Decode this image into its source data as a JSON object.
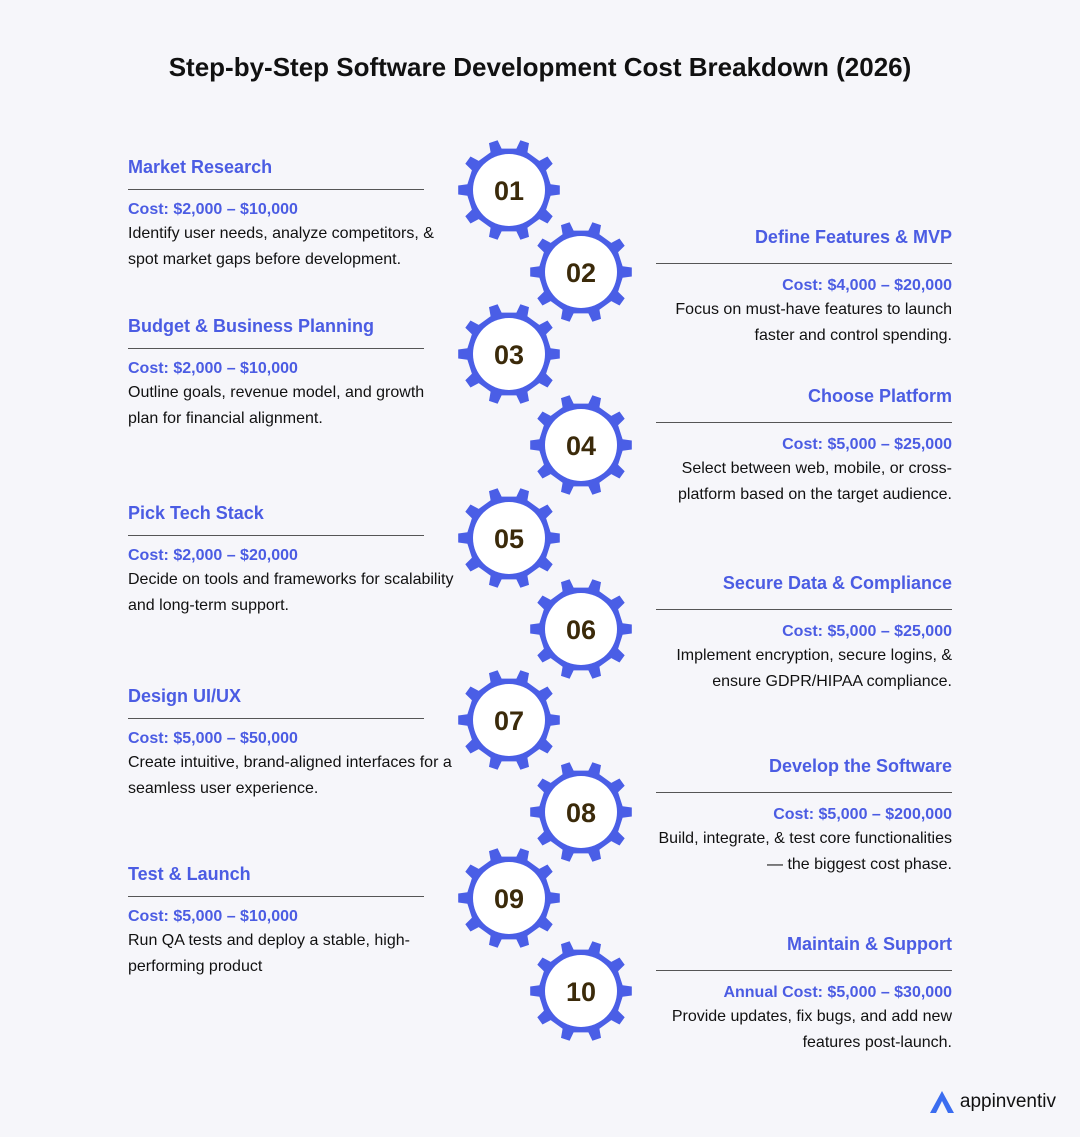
{
  "title": "Step-by-Step Software Development Cost Breakdown (2026)",
  "steps": [
    {
      "number": "01",
      "title": "Market Research",
      "cost": "Cost: $2,000 – $10,000",
      "description": "Identify user needs, analyze competitors, & spot market gaps before development."
    },
    {
      "number": "02",
      "title": "Define Features & MVP",
      "cost": "Cost: $4,000 – $20,000",
      "description": "Focus on must-have features to launch faster and control spending."
    },
    {
      "number": "03",
      "title": "Budget & Business Planning",
      "cost": "Cost: $2,000 – $10,000",
      "description": "Outline goals, revenue model, and growth plan for financial alignment."
    },
    {
      "number": "04",
      "title": "Choose Platform",
      "cost": "Cost: $5,000 – $25,000",
      "description": "Select between web, mobile, or cross-platform based on the target audience."
    },
    {
      "number": "05",
      "title": "Pick Tech Stack",
      "cost": "Cost: $2,000 – $20,000",
      "description": "Decide on tools and frameworks for scalability and long-term support."
    },
    {
      "number": "06",
      "title": "Secure Data & Compliance",
      "cost": "Cost: $5,000 – $25,000",
      "description": "Implement encryption, secure logins, & ensure GDPR/HIPAA compliance."
    },
    {
      "number": "07",
      "title": "Design UI/UX",
      "cost": "Cost: $5,000 – $50,000",
      "description": "Create intuitive, brand-aligned interfaces for a seamless user experience."
    },
    {
      "number": "08",
      "title": "Develop the Software",
      "cost": "Cost: $5,000 – $200,000",
      "description": "Build, integrate, & test core functionalities — the biggest cost phase."
    },
    {
      "number": "09",
      "title": "Test & Launch",
      "cost": "Cost: $5,000 – $10,000",
      "description": "Run QA tests and deploy a stable, high-performing product"
    },
    {
      "number": "10",
      "title": "Maintain & Support",
      "cost": "Annual Cost: $5,000 – $30,000",
      "description": "Provide updates, fix bugs, and add new features post-launch."
    }
  ],
  "logo": "appinventiv"
}
